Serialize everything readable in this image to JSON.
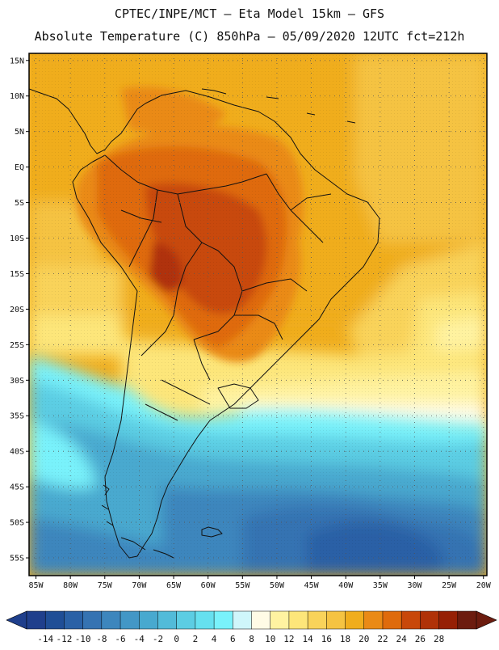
{
  "header": {
    "line1": "CPTEC/INPE/MCT –  Eta Model 15km – GFS",
    "line2": "Absolute Temperature (C) 850hPa – 05/09/2020 12UTC fct=212h"
  },
  "map": {
    "region": "South America",
    "lat_labels": [
      "15N",
      "10N",
      "5N",
      "EQ",
      "5S",
      "10S",
      "15S",
      "20S",
      "25S",
      "30S",
      "35S",
      "40S",
      "45S",
      "50S",
      "55S"
    ],
    "lon_labels": [
      "85W",
      "80W",
      "75W",
      "70W",
      "65W",
      "60W",
      "55W",
      "50W",
      "45W",
      "40W",
      "35W",
      "30W",
      "25W",
      "20W"
    ],
    "lat_range": [
      -57.5,
      16
    ],
    "lon_range": [
      -86,
      -19.5
    ]
  },
  "colorbar": {
    "labels": [
      "-14",
      "-12",
      "-10",
      "-8",
      "-6",
      "-4",
      "-2",
      "0",
      "2",
      "4",
      "6",
      "8",
      "10",
      "12",
      "14",
      "16",
      "18",
      "20",
      "22",
      "24",
      "26",
      "28"
    ],
    "colors": [
      "#1f3f8c",
      "#1f4e96",
      "#2a61a6",
      "#3573b2",
      "#3d86bd",
      "#4397c6",
      "#48a9cf",
      "#52bbd9",
      "#5ccde3",
      "#66e0ef",
      "#79f2fb",
      "#cff6fb",
      "#fffbe6",
      "#fff3a1",
      "#fde67a",
      "#f9d35a",
      "#f5c342",
      "#f0ad1d",
      "#ea8a16",
      "#df6b0c",
      "#c8480a",
      "#b03208",
      "#962005",
      "#6c1c0f"
    ],
    "color_under": "#1f3f8c",
    "color_over": "#6c1c0f"
  }
}
